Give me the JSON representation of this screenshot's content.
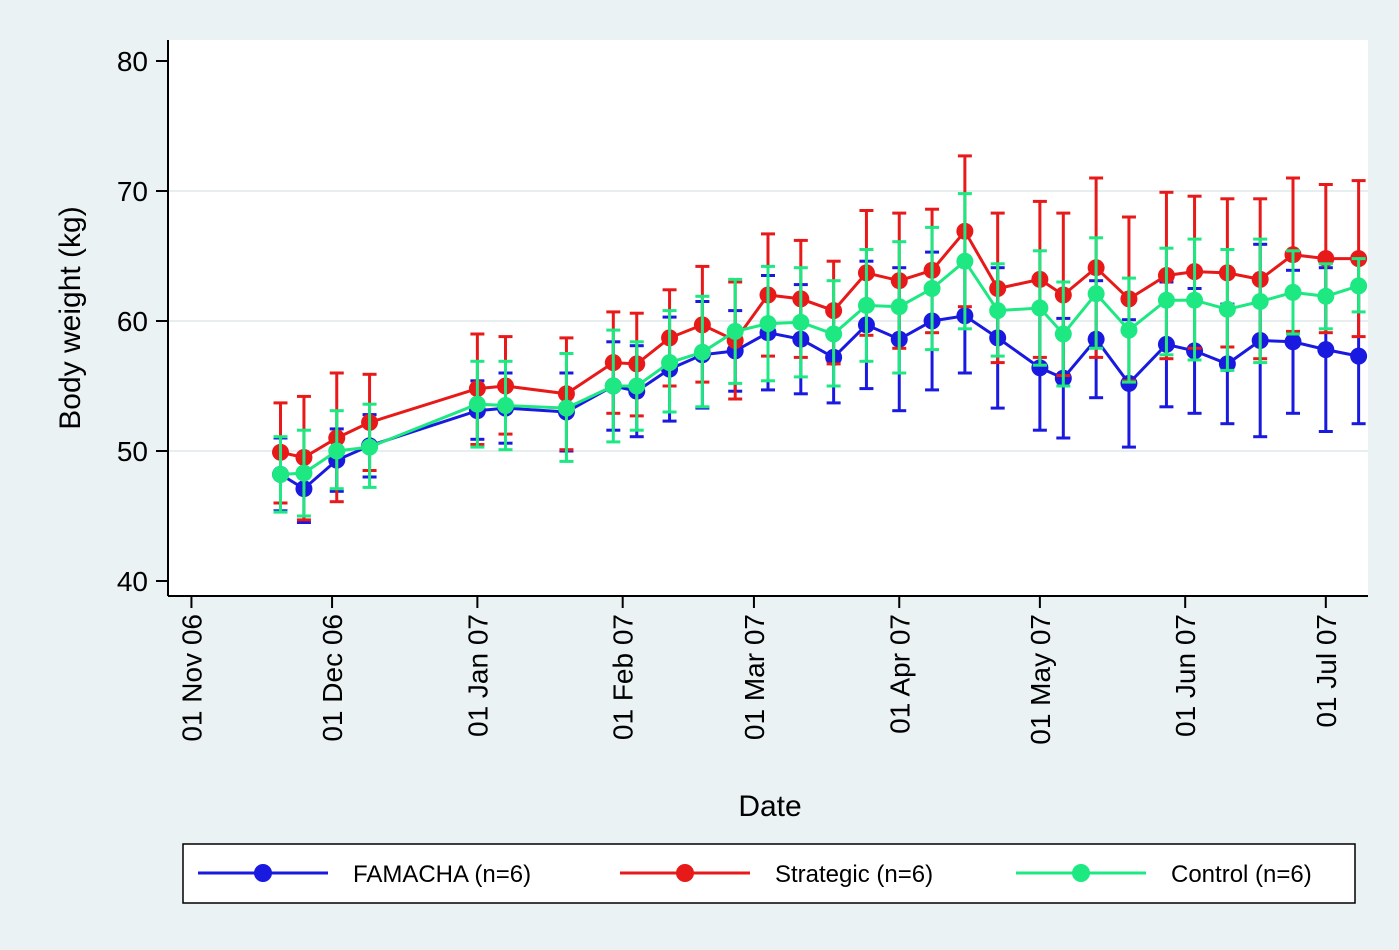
{
  "chart_data": {
    "type": "line",
    "xlabel": "Date",
    "ylabel": "Body weight (kg)",
    "ylim": [
      40,
      80
    ],
    "yticks": [
      40,
      50,
      60,
      70,
      80
    ],
    "x_axis_type": "date",
    "xlim": [
      "2006-10-27",
      "2007-07-10"
    ],
    "xticks": [
      {
        "date": "2006-11-01",
        "label": "01 Nov 06"
      },
      {
        "date": "2006-12-01",
        "label": "01 Dec 06"
      },
      {
        "date": "2007-01-01",
        "label": "01 Jan 07"
      },
      {
        "date": "2007-02-01",
        "label": "01 Feb 07"
      },
      {
        "date": "2007-03-01",
        "label": "01 Mar 07"
      },
      {
        "date": "2007-04-01",
        "label": "01 Apr 07"
      },
      {
        "date": "2007-05-01",
        "label": "01 May 07"
      },
      {
        "date": "2007-06-01",
        "label": "01 Jun 07"
      },
      {
        "date": "2007-07-01",
        "label": "01 Jul 07"
      }
    ],
    "grid": {
      "horizontal": true,
      "vertical": false
    },
    "legend_position": "bottom",
    "x": [
      "2006-11-20",
      "2006-11-25",
      "2006-12-02",
      "2006-12-09",
      "2007-01-01",
      "2007-01-07",
      "2007-01-20",
      "2007-01-30",
      "2007-02-04",
      "2007-02-11",
      "2007-02-18",
      "2007-02-25",
      "2007-03-04",
      "2007-03-11",
      "2007-03-18",
      "2007-03-25",
      "2007-04-01",
      "2007-04-08",
      "2007-04-15",
      "2007-04-22",
      "2007-05-01",
      "2007-05-06",
      "2007-05-13",
      "2007-05-20",
      "2007-05-28",
      "2007-06-03",
      "2007-06-10",
      "2007-06-17",
      "2007-06-24",
      "2007-07-01",
      "2007-07-08"
    ],
    "series": [
      {
        "name": "FAMACHA (n=6)",
        "color": "#1919e0",
        "values": [
          48.2,
          47.1,
          49.3,
          50.4,
          53.1,
          53.3,
          53.0,
          55.0,
          54.6,
          56.3,
          57.4,
          57.7,
          59.1,
          58.6,
          57.2,
          59.7,
          58.6,
          60.0,
          60.4,
          58.7,
          56.4,
          55.6,
          58.6,
          55.2,
          58.2,
          57.7,
          56.7,
          58.5,
          58.4,
          57.8,
          57.3
        ],
        "lower": [
          45.4,
          44.5,
          46.9,
          48.0,
          50.9,
          50.6,
          50.0,
          51.6,
          51.1,
          52.3,
          53.3,
          54.6,
          54.7,
          54.4,
          53.7,
          54.8,
          53.1,
          54.7,
          56.0,
          53.3,
          51.6,
          51.0,
          54.1,
          50.3,
          53.4,
          52.9,
          52.1,
          51.1,
          52.9,
          51.5,
          52.1
        ],
        "upper": [
          51.0,
          49.6,
          51.7,
          52.8,
          55.4,
          56.0,
          56.0,
          58.4,
          58.1,
          60.3,
          61.5,
          60.8,
          63.5,
          62.8,
          60.7,
          64.6,
          64.1,
          65.3,
          64.8,
          64.1,
          61.2,
          60.2,
          63.1,
          60.1,
          63.0,
          62.5,
          61.3,
          65.9,
          63.9,
          64.1,
          62.5
        ]
      },
      {
        "name": "Strategic (n=6)",
        "color": "#e81919",
        "values": [
          49.9,
          49.5,
          51.0,
          52.2,
          54.8,
          55.0,
          54.4,
          56.8,
          56.7,
          58.7,
          59.7,
          58.5,
          62.0,
          61.7,
          60.8,
          63.7,
          63.1,
          63.9,
          66.9,
          62.5,
          63.2,
          62.0,
          64.1,
          61.7,
          63.5,
          63.8,
          63.7,
          63.2,
          65.1,
          64.8,
          64.8
        ],
        "lower": [
          46.0,
          44.7,
          46.1,
          48.5,
          50.5,
          51.3,
          50.1,
          52.9,
          52.7,
          55.0,
          55.3,
          54.0,
          57.3,
          57.2,
          56.7,
          58.9,
          57.9,
          59.1,
          61.1,
          56.8,
          57.2,
          55.8,
          57.2,
          55.4,
          57.1,
          57.9,
          58.0,
          57.1,
          59.2,
          59.1,
          58.8
        ],
        "upper": [
          53.7,
          54.2,
          56.0,
          55.9,
          59.0,
          58.8,
          58.7,
          60.7,
          60.6,
          62.4,
          64.2,
          63.0,
          66.7,
          66.2,
          64.6,
          68.5,
          68.3,
          68.6,
          72.7,
          68.3,
          69.2,
          68.3,
          71.0,
          68.0,
          69.9,
          69.6,
          69.4,
          69.4,
          71.0,
          70.5,
          70.8
        ]
      },
      {
        "name": "Control (n=6)",
        "color": "#1de882",
        "values": [
          48.2,
          48.3,
          50.0,
          50.3,
          53.6,
          53.5,
          53.3,
          55.0,
          55.0,
          56.8,
          57.6,
          59.2,
          59.8,
          59.9,
          59.0,
          61.2,
          61.1,
          62.5,
          64.6,
          60.8,
          61.0,
          59.0,
          62.1,
          59.3,
          61.6,
          61.6,
          60.9,
          61.5,
          62.2,
          61.9,
          62.7
        ],
        "lower": [
          45.3,
          45.0,
          47.1,
          47.2,
          50.3,
          50.1,
          49.2,
          50.7,
          51.6,
          53.0,
          53.4,
          55.2,
          55.4,
          55.7,
          55.0,
          56.9,
          56.0,
          57.8,
          59.4,
          57.3,
          56.6,
          55.0,
          57.9,
          55.3,
          57.4,
          57.0,
          56.2,
          56.8,
          59.0,
          59.4,
          60.7
        ],
        "upper": [
          51.1,
          51.6,
          53.1,
          53.6,
          56.9,
          56.9,
          57.5,
          59.3,
          58.4,
          60.8,
          61.9,
          63.2,
          64.2,
          64.1,
          63.1,
          65.5,
          66.1,
          67.2,
          69.8,
          64.4,
          65.4,
          63.0,
          66.4,
          63.3,
          65.6,
          66.3,
          65.5,
          66.3,
          65.4,
          64.4,
          64.8
        ]
      }
    ]
  }
}
